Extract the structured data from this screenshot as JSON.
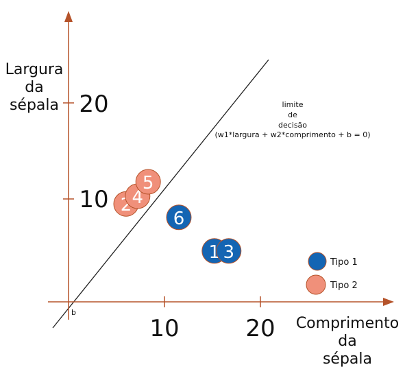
{
  "diagram": {
    "x_axis": {
      "title_lines": [
        "Comprimento",
        "da",
        "sépala"
      ],
      "ticks": [
        {
          "value": 10,
          "label": "10"
        },
        {
          "value": 20,
          "label": "20"
        }
      ]
    },
    "y_axis": {
      "title_lines": [
        "Largura",
        "da",
        "sépala"
      ],
      "ticks": [
        {
          "value": 10,
          "label": "10"
        },
        {
          "value": 20,
          "label": "20"
        }
      ]
    },
    "origin_label": "b",
    "decision_boundary": {
      "label_lines": [
        "limite",
        "de",
        "decisão",
        "(w1*largura + w2*comprimento + b = 0)"
      ]
    },
    "points": [
      {
        "label": "2",
        "type": "Tipo 2",
        "x": 6.0,
        "y": 10.2
      },
      {
        "label": "4",
        "type": "Tipo 2",
        "x": 7.2,
        "y": 11.0
      },
      {
        "label": "5",
        "type": "Tipo 2",
        "x": 8.3,
        "y": 12.5
      },
      {
        "label": "6",
        "type": "Tipo 1",
        "x": 11.5,
        "y": 8.8
      },
      {
        "label": "1",
        "type": "Tipo 1",
        "x": 15.2,
        "y": 5.3
      },
      {
        "label": "3",
        "type": "Tipo 1",
        "x": 16.7,
        "y": 5.3
      }
    ],
    "legend": [
      {
        "label": "Tipo 1",
        "color": "#1465b3"
      },
      {
        "label": "Tipo 2",
        "color": "#f0907a"
      }
    ],
    "colors": {
      "axis": "#b5532a",
      "tipo1_fill": "#1465b3",
      "tipo2_fill": "#f0907a",
      "outline": "#b5532a",
      "boundary_line": "#222222"
    }
  }
}
